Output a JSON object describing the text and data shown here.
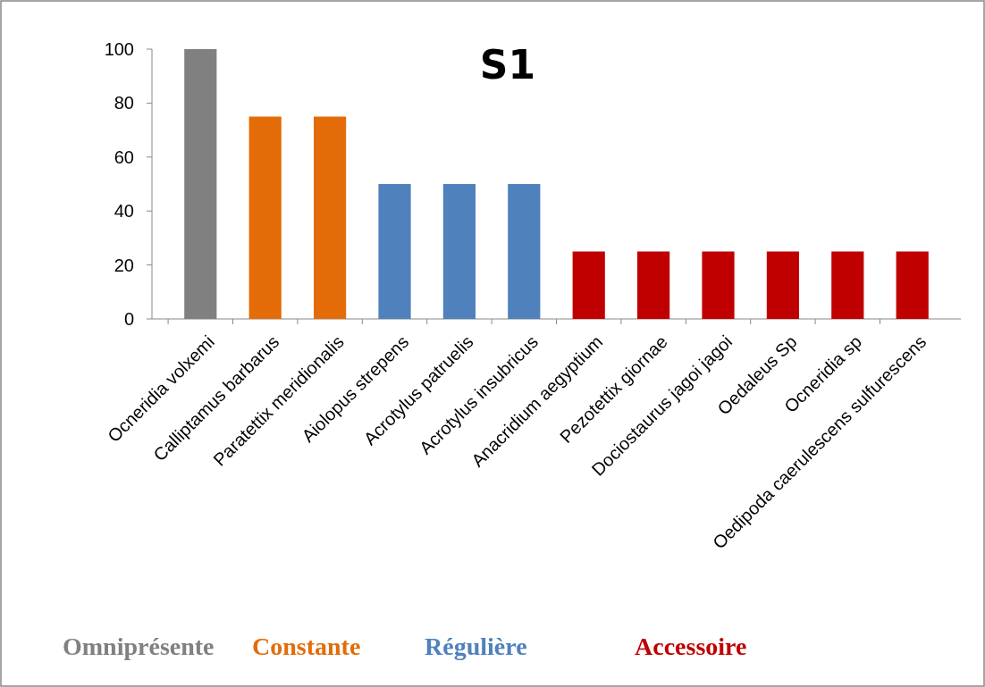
{
  "chart_data": {
    "type": "bar",
    "title": "S1",
    "categories": [
      "Ocneridia volxemi",
      "Calliptamus barbarus",
      "Paratettix meridionalis",
      "Aiolopus strepens",
      "Acrotylus patruelis",
      "Acrotylus insubricus",
      "Anacridium aegyptium",
      "Pezotettix giornae",
      "Dociostaurus jagoi jagoi",
      "Oedaleus Sp",
      "Ocneridia sp",
      "Oedipoda caerulescens sulfurescens"
    ],
    "series": [
      {
        "name": "Omniprésente",
        "color": "#808080",
        "values": [
          100,
          null,
          null,
          null,
          null,
          null,
          null,
          null,
          null,
          null,
          null,
          null
        ]
      },
      {
        "name": "Constante",
        "color": "#e36c09",
        "values": [
          null,
          75,
          75,
          null,
          null,
          null,
          null,
          null,
          null,
          null,
          null,
          null
        ]
      },
      {
        "name": "Régulière",
        "color": "#4f81bd",
        "values": [
          null,
          null,
          null,
          50,
          50,
          50,
          null,
          null,
          null,
          null,
          null,
          null
        ]
      },
      {
        "name": "Accessoire",
        "color": "#c00000",
        "values": [
          null,
          null,
          null,
          null,
          null,
          null,
          25,
          25,
          25,
          25,
          25,
          25
        ]
      }
    ],
    "ylim": [
      0,
      100
    ],
    "yticks": [
      0,
      20,
      40,
      60,
      80,
      100
    ],
    "grid": false,
    "legend": "bottom"
  }
}
